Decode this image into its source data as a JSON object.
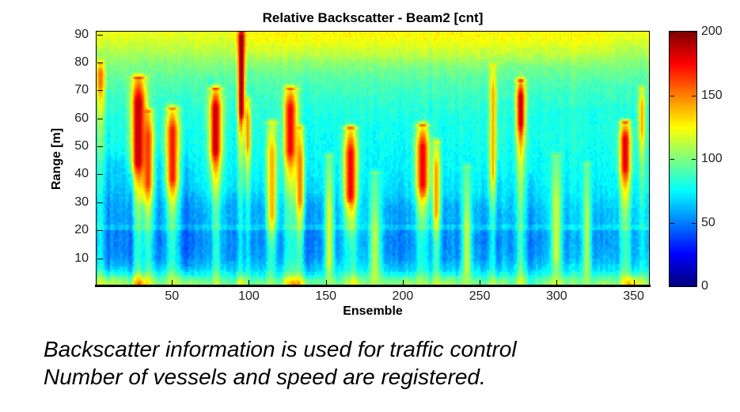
{
  "figure": {
    "title": "Relative Backscatter - Beam2 [cnt]",
    "xlabel": "Ensemble",
    "ylabel": "Range [m]"
  },
  "caption": {
    "line1": "Backscatter information is used for traffic control",
    "line2": "Number of vessels and speed are registered."
  },
  "colors": {
    "background": "#ffffff",
    "text": "#000000",
    "tick_text": "#222222",
    "axis": "#000000"
  },
  "chart_data": {
    "type": "heatmap",
    "title": "Relative Backscatter - Beam2 [cnt]",
    "xlabel": "Ensemble",
    "ylabel": "Range [m]",
    "colormap": "jet",
    "clim": [
      0,
      200
    ],
    "x_range": [
      1,
      360
    ],
    "y_range": [
      0,
      91
    ],
    "x_ticks": [
      50,
      100,
      150,
      200,
      250,
      300,
      350
    ],
    "y_ticks": [
      10,
      20,
      30,
      40,
      50,
      60,
      70,
      80,
      90
    ],
    "colorbar_ticks": [
      0,
      50,
      100,
      150,
      200
    ],
    "legend_position": "right-colorbar",
    "grid": false,
    "background_profile": [
      [
        0,
        92
      ],
      [
        1.5,
        96
      ],
      [
        3,
        88
      ],
      [
        6,
        70
      ],
      [
        10,
        60
      ],
      [
        16,
        56
      ],
      [
        20,
        58
      ],
      [
        23,
        63
      ],
      [
        28,
        63
      ],
      [
        34,
        68
      ],
      [
        42,
        73
      ],
      [
        52,
        77
      ],
      [
        60,
        80
      ],
      [
        68,
        86
      ],
      [
        74,
        92
      ],
      [
        80,
        102
      ],
      [
        85,
        112
      ],
      [
        88,
        118
      ],
      [
        91,
        121
      ]
    ],
    "patches": [
      {
        "e0": 2,
        "e1": 58,
        "r0": 8,
        "r1": 44,
        "d": -8
      },
      {
        "e0": 62,
        "e1": 150,
        "r0": 4,
        "r1": 30,
        "d": -6
      },
      {
        "e0": 190,
        "e1": 255,
        "r0": 6,
        "r1": 28,
        "d": -5
      },
      {
        "e0": 95,
        "e1": 330,
        "r0": 83,
        "r1": 91,
        "d": 5
      },
      {
        "e0": 255,
        "e1": 360,
        "r0": 30,
        "r1": 55,
        "d": 3
      }
    ],
    "vessel_echo_events": [
      {
        "e": 3,
        "w": 4,
        "top": 79,
        "c0": 72,
        "c1": 77,
        "peak": 155
      },
      {
        "e": 28,
        "w": 7,
        "top": 74,
        "c0": 44,
        "c1": 66,
        "peak": 190
      },
      {
        "e": 34,
        "w": 5,
        "top": 62,
        "c0": 36,
        "c1": 54,
        "peak": 165
      },
      {
        "e": 50,
        "w": 6,
        "top": 63,
        "c0": 38,
        "c1": 56,
        "peak": 172
      },
      {
        "e": 78,
        "w": 6,
        "top": 70,
        "c0": 48,
        "c1": 64,
        "peak": 188
      },
      {
        "e": 95,
        "w": 3,
        "top": 91,
        "c0": 62,
        "c1": 90,
        "peak": 200
      },
      {
        "e": 99,
        "w": 3,
        "top": 66,
        "c0": 50,
        "c1": 60,
        "peak": 150
      },
      {
        "e": 115,
        "w": 5,
        "top": 58,
        "c0": 25,
        "c1": 48,
        "peak": 142
      },
      {
        "e": 127,
        "w": 6,
        "top": 70,
        "c0": 48,
        "c1": 64,
        "peak": 178
      },
      {
        "e": 133,
        "w": 4,
        "top": 56,
        "c0": 30,
        "c1": 46,
        "peak": 152
      },
      {
        "e": 152,
        "w": 4,
        "top": 46,
        "c0": 8,
        "c1": 28,
        "peak": 120
      },
      {
        "e": 166,
        "w": 6,
        "top": 56,
        "c0": 32,
        "c1": 48,
        "peak": 178
      },
      {
        "e": 182,
        "w": 5,
        "top": 40,
        "c0": 2,
        "c1": 20,
        "peak": 112
      },
      {
        "e": 213,
        "w": 6,
        "top": 57,
        "c0": 36,
        "c1": 50,
        "peak": 178
      },
      {
        "e": 222,
        "w": 4,
        "top": 51,
        "c0": 26,
        "c1": 42,
        "peak": 145
      },
      {
        "e": 242,
        "w": 4,
        "top": 42,
        "c0": 6,
        "c1": 22,
        "peak": 115
      },
      {
        "e": 259,
        "w": 3,
        "top": 78,
        "c0": 40,
        "c1": 70,
        "peak": 142
      },
      {
        "e": 277,
        "w": 4,
        "top": 73,
        "c0": 58,
        "c1": 68,
        "peak": 188
      },
      {
        "e": 300,
        "w": 5,
        "top": 46,
        "c0": 10,
        "c1": 30,
        "peak": 115
      },
      {
        "e": 320,
        "w": 4,
        "top": 43,
        "c0": 6,
        "c1": 26,
        "peak": 112
      },
      {
        "e": 345,
        "w": 5,
        "top": 58,
        "c0": 42,
        "c1": 53,
        "peak": 182
      },
      {
        "e": 356,
        "w": 3,
        "top": 70,
        "c0": 55,
        "c1": 65,
        "peak": 142
      }
    ],
    "shadows": [
      {
        "e": 23,
        "w": 2,
        "top": 40,
        "d": 16
      },
      {
        "e": 31,
        "w": 2,
        "top": 30,
        "d": 14
      },
      {
        "e": 75,
        "w": 2,
        "top": 75,
        "d": 18
      },
      {
        "e": 96,
        "w": 2,
        "top": 60,
        "d": 20
      },
      {
        "e": 118,
        "w": 2,
        "top": 55,
        "d": 14
      },
      {
        "e": 165,
        "w": 2,
        "top": 30,
        "d": 18
      },
      {
        "e": 214,
        "w": 2,
        "top": 32,
        "d": 16
      },
      {
        "e": 262,
        "w": 2,
        "top": 45,
        "d": 14
      },
      {
        "e": 283,
        "w": 2,
        "top": 40,
        "d": 14
      }
    ],
    "bottom_band_blobs": [
      {
        "e": 10,
        "w": 12,
        "add": 18
      },
      {
        "e": 29,
        "w": 8,
        "add": 45
      },
      {
        "e": 60,
        "w": 10,
        "add": 15
      },
      {
        "e": 95,
        "w": 4,
        "add": 28
      },
      {
        "e": 130,
        "w": 10,
        "add": 40
      },
      {
        "e": 168,
        "w": 6,
        "add": 22
      },
      {
        "e": 200,
        "w": 10,
        "add": 14
      },
      {
        "e": 228,
        "w": 8,
        "add": 18
      },
      {
        "e": 262,
        "w": 6,
        "add": 16
      },
      {
        "e": 300,
        "w": 10,
        "add": 16
      },
      {
        "e": 330,
        "w": 8,
        "add": 14
      },
      {
        "e": 350,
        "w": 9,
        "add": 42
      }
    ],
    "sidelobe_stripe": {
      "r": 21,
      "half": 1.1,
      "boost": 17
    },
    "noise": {
      "cell": 5,
      "column": 9,
      "seed": 7
    }
  }
}
